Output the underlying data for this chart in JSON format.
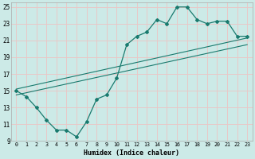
{
  "xlabel": "Humidex (Indice chaleur)",
  "xlim": [
    -0.5,
    23.5
  ],
  "ylim": [
    9,
    25.5
  ],
  "xticks": [
    0,
    1,
    2,
    3,
    4,
    5,
    6,
    7,
    8,
    9,
    10,
    11,
    12,
    13,
    14,
    15,
    16,
    17,
    18,
    19,
    20,
    21,
    22,
    23
  ],
  "yticks": [
    9,
    11,
    13,
    15,
    17,
    19,
    21,
    23,
    25
  ],
  "bg_color": "#cceae7",
  "grid_color": "#e8c8c8",
  "line_color": "#1a7a6e",
  "line1_x": [
    0,
    1,
    2,
    3,
    4,
    5,
    6,
    7,
    8,
    9,
    10,
    11,
    12,
    13,
    14,
    15,
    16,
    17,
    18,
    19,
    20,
    21,
    22,
    23
  ],
  "line1_y": [
    15.0,
    14.3,
    13.0,
    11.5,
    10.3,
    10.3,
    9.5,
    11.3,
    14.0,
    14.5,
    16.5,
    20.5,
    21.5,
    22.0,
    23.5,
    23.0,
    25.0,
    25.0,
    23.5,
    23.0,
    23.3,
    23.3,
    21.5,
    21.5
  ],
  "line2_x": [
    0,
    23
  ],
  "line2_y": [
    15.2,
    21.3
  ],
  "line3_x": [
    0,
    23
  ],
  "line3_y": [
    14.5,
    20.5
  ]
}
